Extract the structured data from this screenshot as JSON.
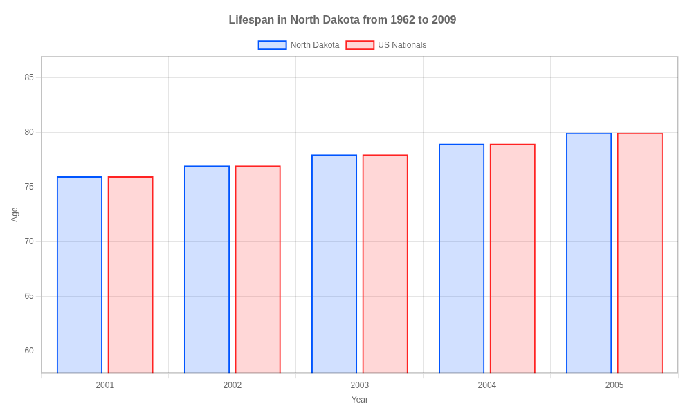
{
  "chart_data": {
    "type": "bar",
    "title": "Lifespan in North Dakota from 1962 to 2009",
    "x_label": "Year",
    "y_label": "Age",
    "categories": [
      "2001",
      "2002",
      "2003",
      "2004",
      "2005"
    ],
    "series": [
      {
        "name": "North Dakota",
        "color": "#0055ff",
        "values": [
          76,
          77,
          78,
          79,
          80
        ]
      },
      {
        "name": "US Nationals",
        "color": "#ff2222",
        "values": [
          76,
          77,
          78,
          79,
          80
        ]
      }
    ],
    "ylim": [
      58,
      87
    ],
    "yticks": [
      60,
      65,
      70,
      75,
      80,
      85
    ],
    "grid": true,
    "legend": "top"
  }
}
